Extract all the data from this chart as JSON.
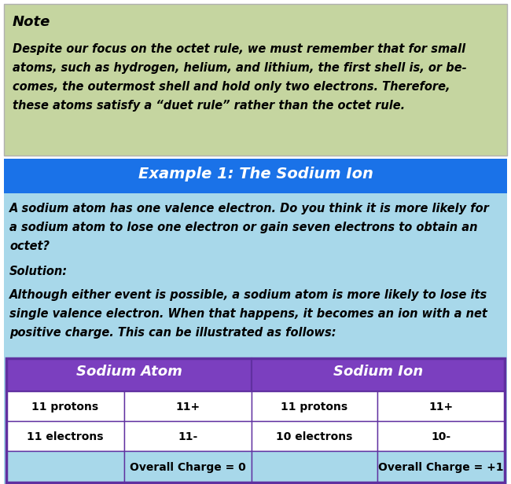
{
  "note_bg": "#c5d5a0",
  "note_title": "Note",
  "note_text_lines": [
    "Despite our focus on the octet rule, we must remember that for small",
    "atoms, such as hydrogen, helium, and lithium, the first shell is, or be-",
    "comes, the outermost shell and hold only two electrons. Therefore,",
    "these atoms satisfy a “duet rule” rather than the octet rule."
  ],
  "example_header_bg": "#1a72e8",
  "example_header_text": "Example 1: The Sodium Ion",
  "body_bg": "#a8d8ea",
  "body_text1_lines": [
    "A sodium atom has one valence electron. Do you think it is more likely for",
    "a sodium atom to lose one electron or gain seven electrons to obtain an",
    "octet?"
  ],
  "solution_label": "Solution:",
  "body_text2_lines": [
    "Although either event is possible, a sodium atom is more likely to lose its",
    "single valence electron. When that happens, it becomes an ion with a net",
    "positive charge. This can be illustrated as follows:"
  ],
  "table_border": "#6030a0",
  "table_header_bg": "#7b3fbf",
  "table_header_text_color": "#ffffff",
  "table_cell_bg": "#ffffff",
  "table_last_row_bg": "#a8d8ea",
  "col1_header": "Sodium Atom",
  "col2_header": "Sodium Ion",
  "table_data": [
    [
      "11 protons",
      "11+",
      "11 protons",
      "11+"
    ],
    [
      "11 electrons",
      "11-",
      "10 electrons",
      "10-"
    ],
    [
      "",
      "Overall Charge = 0",
      "",
      "Overall Charge = +1"
    ]
  ],
  "fig_width": 6.5,
  "fig_height": 6.16,
  "dpi": 100
}
